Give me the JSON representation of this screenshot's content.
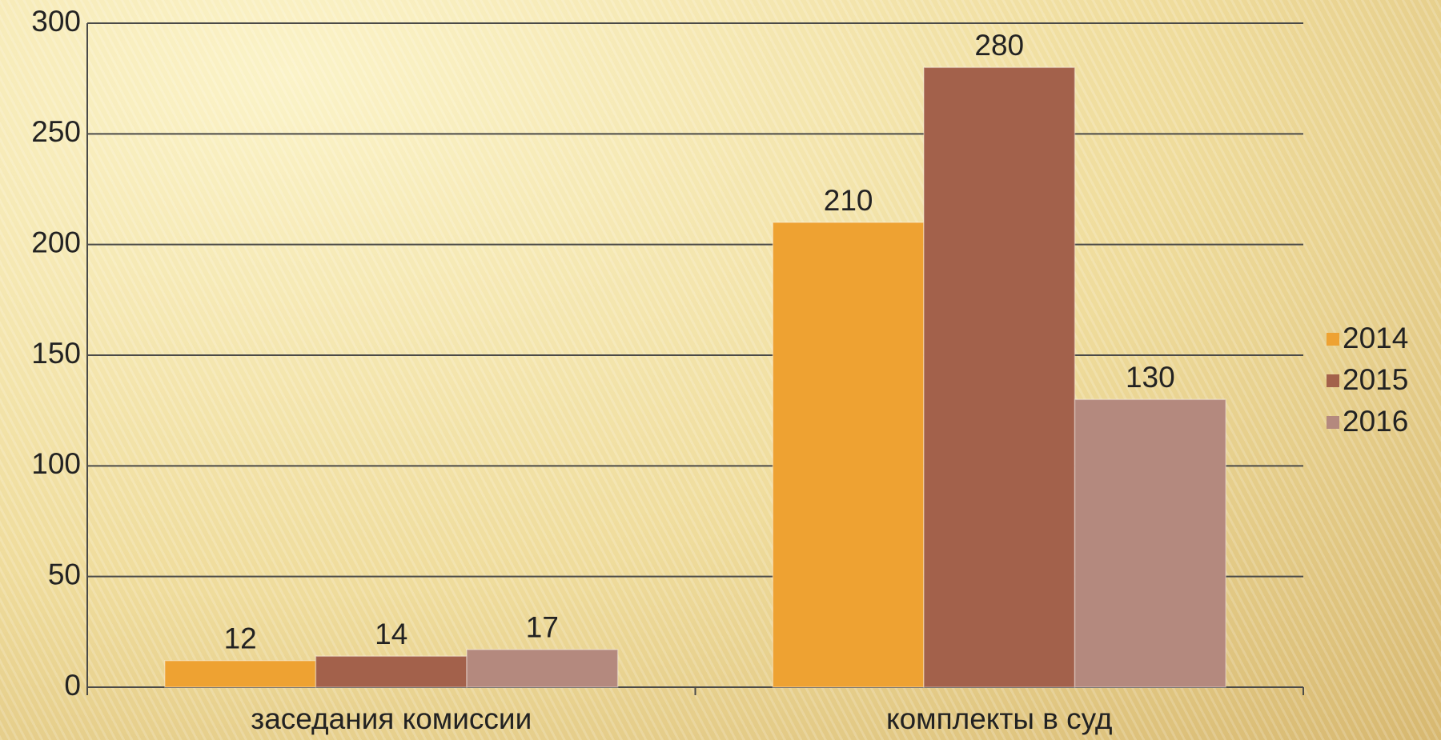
{
  "chart_data": {
    "type": "bar",
    "categories": [
      "заседания комиссии",
      "комплекты в суд"
    ],
    "series": [
      {
        "name": "2014",
        "color": "#eea232",
        "values": [
          12,
          210
        ]
      },
      {
        "name": "2015",
        "color": "#a3614b",
        "values": [
          14,
          280
        ]
      },
      {
        "name": "2016",
        "color": "#b4897e",
        "values": [
          17,
          130
        ]
      }
    ],
    "ylim": [
      0,
      300
    ],
    "yticks": [
      0,
      50,
      100,
      150,
      200,
      250,
      300
    ],
    "grid": true,
    "legend": "right",
    "data_labels": true
  }
}
